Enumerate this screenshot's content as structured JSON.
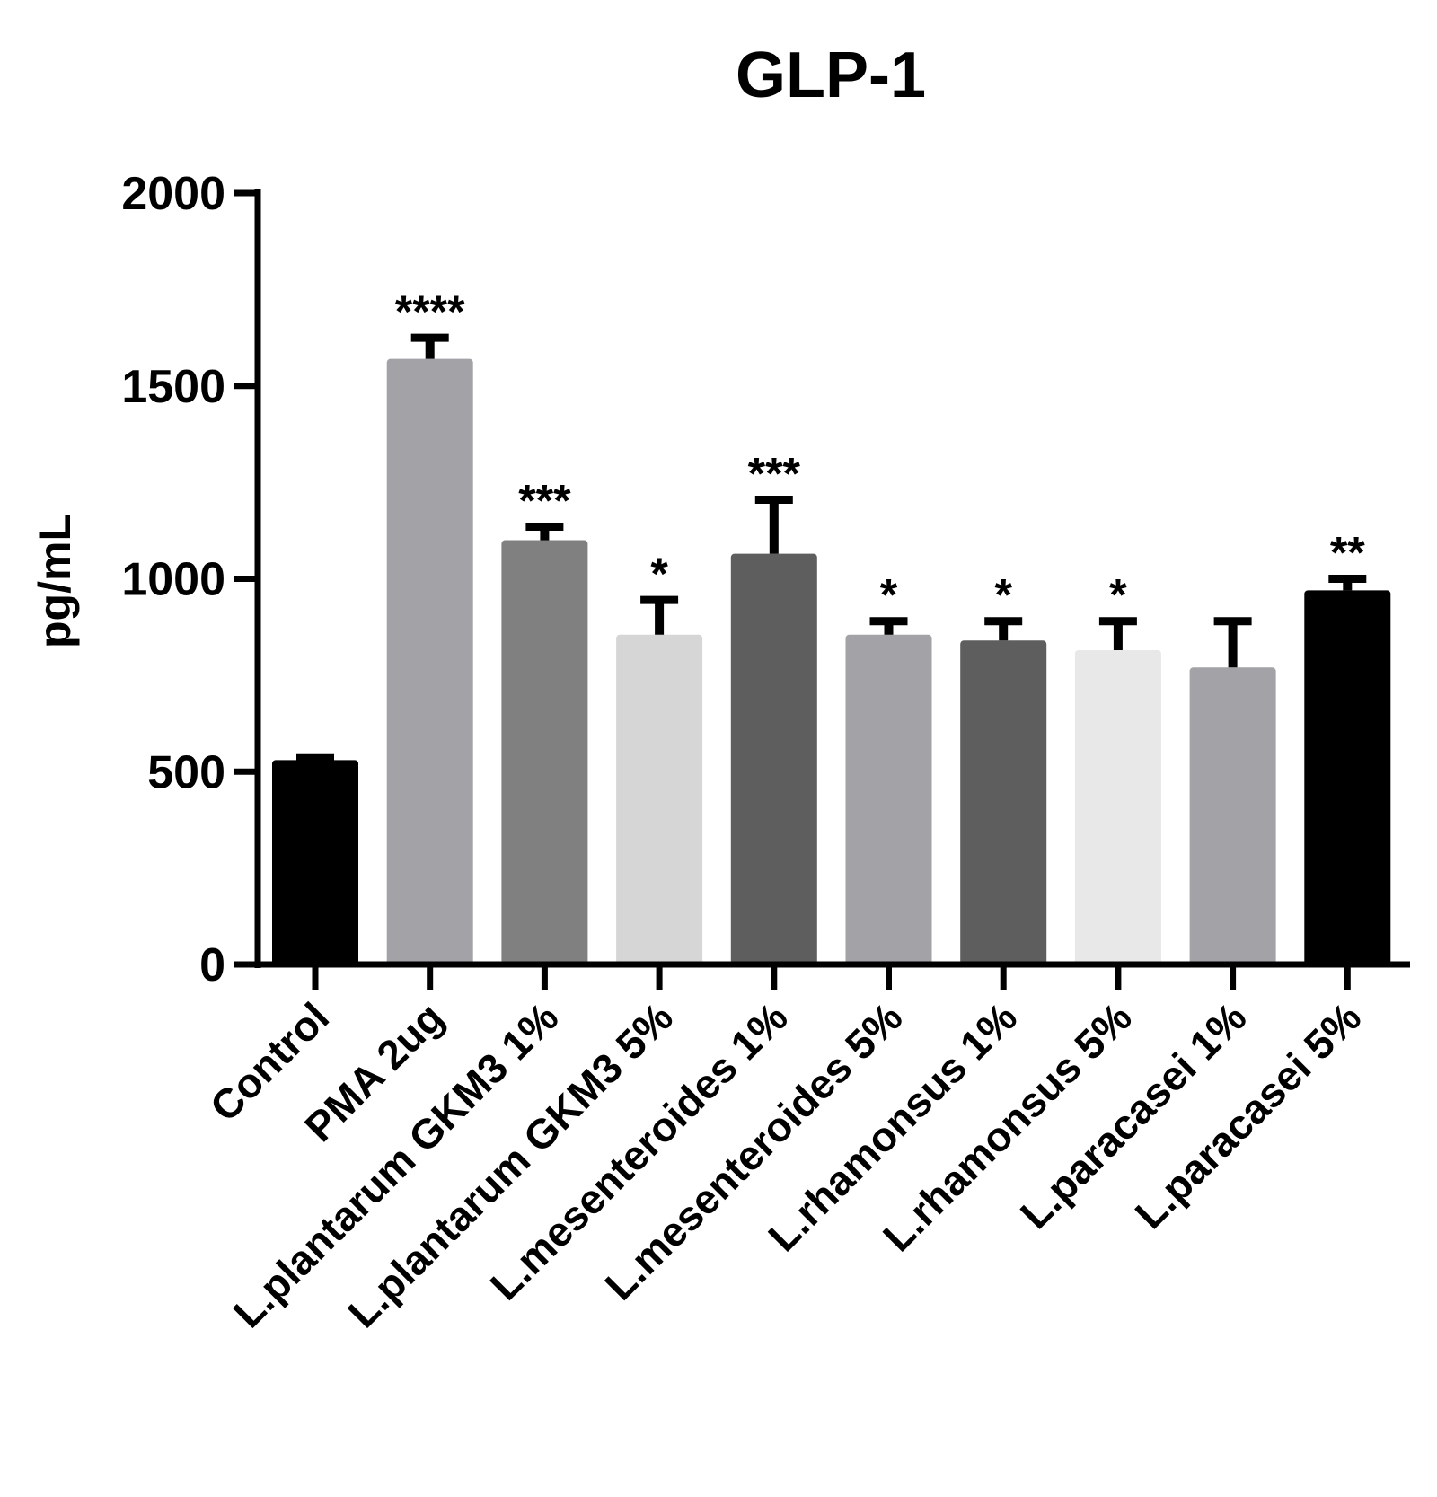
{
  "chart_data": {
    "type": "bar",
    "title": "GLP-1",
    "xlabel": "",
    "ylabel": "pg/mL",
    "ylim": [
      0,
      2000
    ],
    "yticks": [
      0,
      500,
      1000,
      1500,
      2000
    ],
    "grid": false,
    "legend": "none",
    "categories": [
      "Control",
      "PMA 2ug",
      "L.plantarum GKM3 1%",
      "L.plantarum GKM3 5%",
      "L.mesenteroides 1%",
      "L.mesenteroides 5%",
      "L.rhamonsus 1%",
      "L.rhamonsus 5%",
      "L.paracasei 1%",
      "L.paracasei 5%"
    ],
    "values": [
      530,
      1570,
      1100,
      855,
      1065,
      855,
      840,
      815,
      770,
      970
    ],
    "errors": [
      5,
      55,
      35,
      90,
      140,
      35,
      50,
      75,
      120,
      30
    ],
    "significance": [
      "",
      "****",
      "***",
      "*",
      "***",
      "*",
      "*",
      "*",
      "",
      "**"
    ],
    "colors": [
      "#000000",
      "#a2a2a7",
      "#808080",
      "#d6d6d6",
      "#5e5e5e",
      "#a2a2a7",
      "#5e5e5e",
      "#e8e8e8",
      "#a2a2a7",
      "#000000"
    ]
  }
}
